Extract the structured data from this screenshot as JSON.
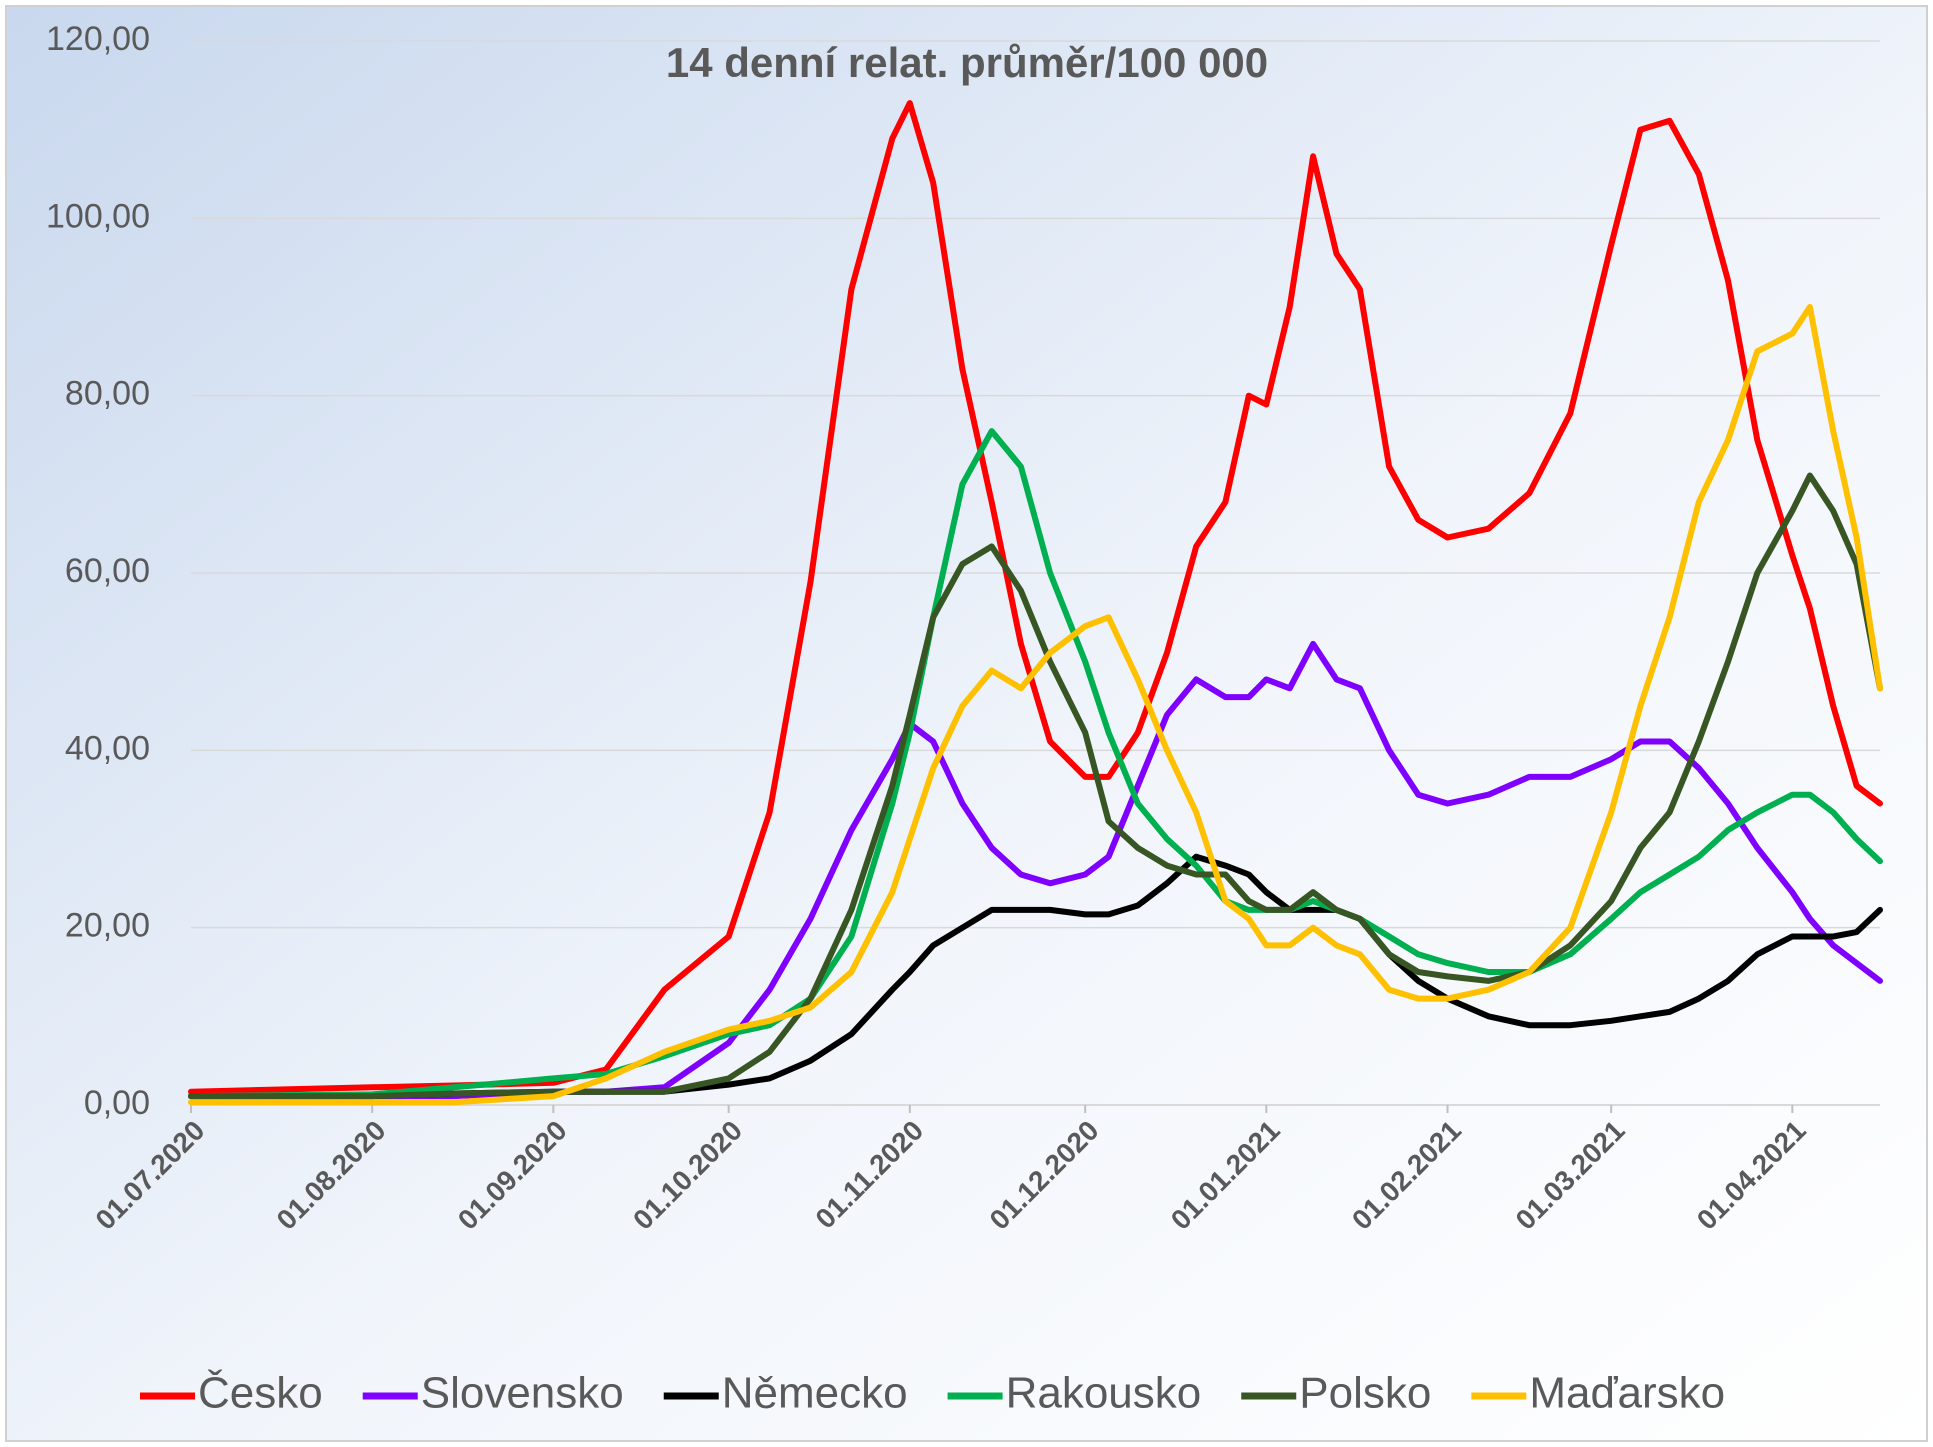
{
  "chart_data": {
    "type": "line",
    "title": "14 denní relat. průměr/100 000",
    "x": [
      "01.07.2020",
      "01.08.2020",
      "15.08.2020",
      "01.09.2020",
      "10.09.2020",
      "20.09.2020",
      "01.10.2020",
      "08.10.2020",
      "15.10.2020",
      "22.10.2020",
      "29.10.2020",
      "01.11.2020",
      "05.11.2020",
      "10.11.2020",
      "15.11.2020",
      "20.11.2020",
      "25.11.2020",
      "01.12.2020",
      "05.12.2020",
      "10.12.2020",
      "15.12.2020",
      "20.12.2020",
      "25.12.2020",
      "29.12.2020",
      "01.01.2021",
      "05.01.2021",
      "09.01.2021",
      "13.01.2021",
      "17.01.2021",
      "22.01.2021",
      "27.01.2021",
      "01.02.2021",
      "08.02.2021",
      "15.02.2021",
      "22.02.2021",
      "01.03.2021",
      "06.03.2021",
      "11.03.2021",
      "16.03.2021",
      "21.03.2021",
      "26.03.2021",
      "01.04.2021",
      "04.04.2021",
      "08.04.2021",
      "12.04.2021",
      "16.04.2021"
    ],
    "series": [
      {
        "name": "Česko",
        "color": "#ff0000",
        "values": [
          1.5,
          2,
          2.2,
          2.5,
          4,
          13,
          19,
          33,
          59,
          92,
          109,
          113,
          104,
          83,
          68,
          52,
          41,
          37,
          37,
          42,
          51,
          63,
          68,
          80,
          79,
          90,
          107,
          96,
          92,
          72,
          66,
          64,
          65,
          69,
          78,
          97,
          110,
          111,
          105,
          93,
          75,
          62,
          56,
          45,
          36,
          34
        ]
      },
      {
        "name": "Slovensko",
        "color": "#7f00ff",
        "values": [
          1,
          1,
          1,
          1.5,
          1.5,
          2,
          7,
          13,
          21,
          31,
          39,
          43,
          41,
          34,
          29,
          26,
          25,
          26,
          28,
          36,
          44,
          48,
          46,
          46,
          48,
          47,
          52,
          48,
          47,
          40,
          35,
          34,
          35,
          37,
          37,
          39,
          41,
          41,
          38,
          34,
          29,
          24,
          21,
          18,
          16,
          14
        ]
      },
      {
        "name": "Německo",
        "color": "#000000",
        "values": [
          1,
          1,
          1.3,
          1.5,
          1.5,
          1.5,
          2.3,
          3,
          5,
          8,
          13,
          15,
          18,
          20,
          22,
          22,
          22,
          21.5,
          21.5,
          22.5,
          25,
          28,
          27,
          26,
          24,
          22,
          22,
          22,
          21,
          17,
          14,
          12,
          10,
          9,
          9,
          9.5,
          10,
          10.5,
          12,
          14,
          17,
          19,
          19,
          19,
          19.5,
          22
        ]
      },
      {
        "name": "Rakousko",
        "color": "#00b050",
        "values": [
          1,
          1.2,
          2,
          3,
          3.5,
          5.5,
          8,
          9,
          12,
          19,
          34,
          42,
          55,
          70,
          76,
          72,
          60,
          50,
          42,
          34,
          30,
          27,
          23,
          22,
          22,
          22,
          23,
          22,
          21,
          19,
          17,
          16,
          15,
          15,
          17,
          21,
          24,
          26,
          28,
          31,
          33,
          35,
          35,
          33,
          30,
          27.5
        ]
      },
      {
        "name": "Polsko",
        "color": "#375623",
        "values": [
          1,
          1,
          1.3,
          1.5,
          1.5,
          1.5,
          3,
          6,
          12,
          22,
          36,
          44,
          55,
          61,
          63,
          58,
          50,
          42,
          32,
          29,
          27,
          26,
          26,
          23,
          22,
          22,
          24,
          22,
          21,
          17,
          15,
          14.5,
          14,
          15,
          18,
          23,
          29,
          33,
          41,
          50,
          60,
          67,
          71,
          67,
          61,
          47
        ]
      },
      {
        "name": "Maďarsko",
        "color": "#ffc000",
        "values": [
          0.3,
          0.3,
          0.3,
          1,
          3,
          6,
          8.5,
          9.5,
          11,
          15,
          24,
          30,
          38,
          45,
          49,
          47,
          51,
          54,
          55,
          48,
          40,
          33,
          23,
          21,
          18,
          18,
          20,
          18,
          17,
          13,
          12,
          12,
          13,
          15,
          20,
          33,
          45,
          55,
          68,
          75,
          85,
          87,
          90,
          76,
          64,
          47
        ]
      }
    ],
    "xlim": [
      "01.07.2020",
      "16.04.2021"
    ],
    "xticks": [
      "01.07.2020",
      "01.08.2020",
      "01.09.2020",
      "01.10.2020",
      "01.11.2020",
      "01.12.2020",
      "01.01.2021",
      "01.02.2021",
      "01.03.2021",
      "01.04.2021"
    ],
    "ylim": [
      0,
      120
    ],
    "yticks": [
      {
        "value": 0,
        "label": "0,00"
      },
      {
        "value": 20,
        "label": "20,00"
      },
      {
        "value": 40,
        "label": "40,00"
      },
      {
        "value": 60,
        "label": "60,00"
      },
      {
        "value": 80,
        "label": "80,00"
      },
      {
        "value": 100,
        "label": "100,00"
      },
      {
        "value": 120,
        "label": "120,00"
      }
    ],
    "grid": true,
    "legend": "bottom"
  }
}
